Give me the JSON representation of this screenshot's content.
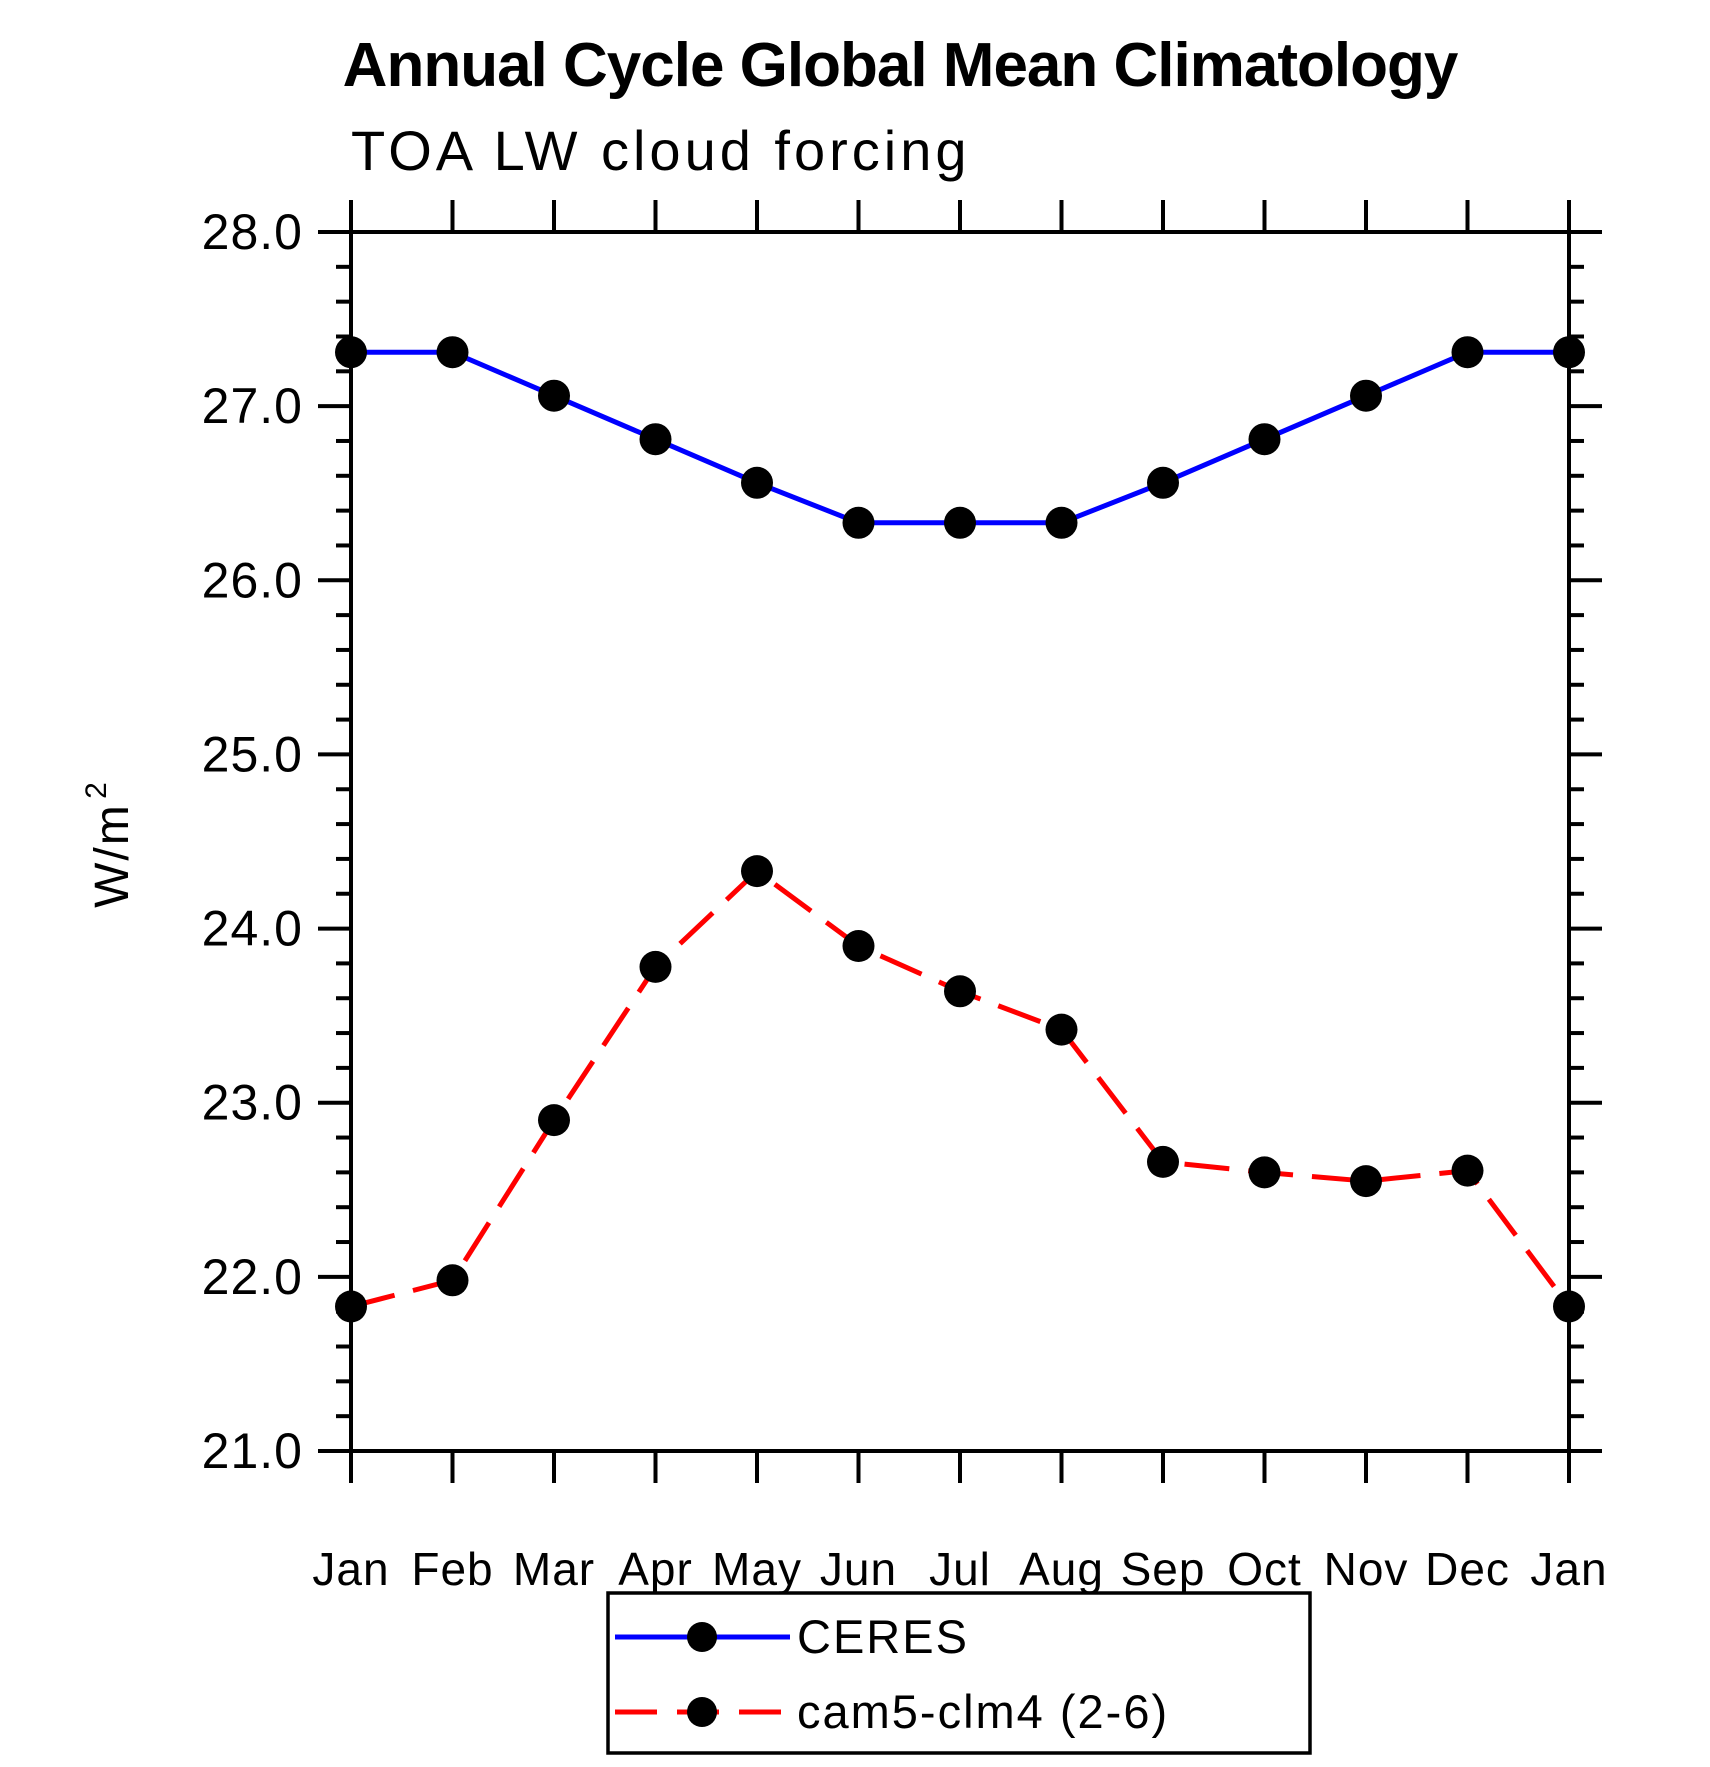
{
  "page": {
    "background": "#ffffff"
  },
  "chart_data": {
    "type": "line",
    "title": "Annual Cycle Global Mean Climatology",
    "subtitle": "TOA LW cloud forcing",
    "ylabel_base": "W/m",
    "ylabel_sup": "2",
    "categories": [
      "Jan",
      "Feb",
      "Mar",
      "Apr",
      "May",
      "Jun",
      "Jul",
      "Aug",
      "Sep",
      "Oct",
      "Nov",
      "Dec",
      "Jan"
    ],
    "series": [
      {
        "name": "CERES",
        "color": "#0000ff",
        "line_style": "solid",
        "marker": "filled-circle",
        "marker_color": "#000000",
        "values": [
          27.31,
          27.31,
          27.06,
          26.81,
          26.56,
          26.33,
          26.33,
          26.33,
          26.56,
          26.81,
          27.06,
          27.31,
          27.31
        ]
      },
      {
        "name": "cam5-clm4 (2-6)",
        "color": "#ff0000",
        "line_style": "dashed",
        "marker": "filled-circle",
        "marker_color": "#000000",
        "values": [
          21.83,
          21.98,
          22.9,
          23.78,
          24.33,
          23.9,
          23.64,
          23.42,
          22.66,
          22.6,
          22.55,
          22.61,
          21.83
        ]
      }
    ],
    "ylim": [
      21.0,
      28.0
    ],
    "ytick_labels": [
      "21.0",
      "22.0",
      "23.0",
      "24.0",
      "25.0",
      "26.0",
      "27.0",
      "28.0"
    ],
    "ytick_major_interval": 1.0,
    "ytick_minor_interval": 0.2,
    "grid": false,
    "axis_color": "#000000",
    "legend_position": "bottom-center"
  }
}
